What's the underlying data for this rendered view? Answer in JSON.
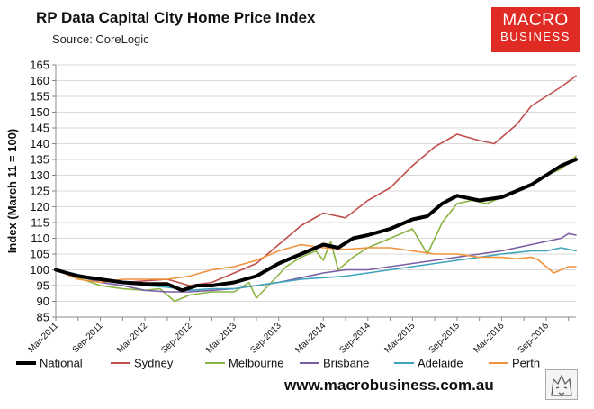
{
  "chart_data": {
    "type": "line",
    "title": "RP Data Capital City Home Price Index",
    "subtitle": "Source: CoreLogic",
    "ylabel": "Index (March 11 = 100)",
    "xlabel": "",
    "ylim": [
      85,
      165
    ],
    "yticks": [
      85,
      90,
      95,
      100,
      105,
      110,
      115,
      120,
      125,
      130,
      135,
      140,
      145,
      150,
      155,
      160,
      165
    ],
    "xlim": [
      0,
      70
    ],
    "xticks": [
      {
        "pos": 0,
        "label": "Mar-2011"
      },
      {
        "pos": 6,
        "label": "Sep-2011"
      },
      {
        "pos": 12,
        "label": "Mar-2012"
      },
      {
        "pos": 18,
        "label": "Sep-2012"
      },
      {
        "pos": 24,
        "label": "Mar-2013"
      },
      {
        "pos": 30,
        "label": "Sep-2013"
      },
      {
        "pos": 36,
        "label": "Mar-2014"
      },
      {
        "pos": 42,
        "label": "Sep-2014"
      },
      {
        "pos": 48,
        "label": "Mar-2015"
      },
      {
        "pos": 54,
        "label": "Sep-2015"
      },
      {
        "pos": 60,
        "label": "Mar-2016"
      },
      {
        "pos": 66,
        "label": "Sep-2016"
      }
    ],
    "grid": "horizontal",
    "legend_position": "bottom",
    "series": [
      {
        "name": "Sydney",
        "color": "#c0504d",
        "width": 1.6,
        "points": [
          [
            0,
            100
          ],
          [
            3,
            98.5
          ],
          [
            6,
            97
          ],
          [
            9,
            96
          ],
          [
            12,
            96.5
          ],
          [
            15,
            97
          ],
          [
            18,
            95
          ],
          [
            21,
            96
          ],
          [
            24,
            99
          ],
          [
            27,
            102
          ],
          [
            30,
            108
          ],
          [
            33,
            114
          ],
          [
            36,
            118
          ],
          [
            39,
            116.5
          ],
          [
            42,
            122
          ],
          [
            45,
            126
          ],
          [
            48,
            133
          ],
          [
            51,
            139
          ],
          [
            54,
            143
          ],
          [
            57,
            141
          ],
          [
            59,
            140
          ],
          [
            62,
            146
          ],
          [
            64,
            152
          ],
          [
            66,
            155
          ],
          [
            68,
            158
          ],
          [
            70,
            161.5
          ]
        ]
      },
      {
        "name": "Melbourne",
        "color": "#8ab440",
        "width": 1.6,
        "points": [
          [
            0,
            100
          ],
          [
            3,
            97.5
          ],
          [
            6,
            95
          ],
          [
            9,
            94
          ],
          [
            12,
            93.5
          ],
          [
            14,
            94
          ],
          [
            16,
            90
          ],
          [
            18,
            92
          ],
          [
            21,
            93
          ],
          [
            24,
            93
          ],
          [
            26,
            96
          ],
          [
            27,
            91
          ],
          [
            29,
            96
          ],
          [
            31,
            101
          ],
          [
            33,
            104
          ],
          [
            35,
            106
          ],
          [
            36,
            103
          ],
          [
            37,
            109
          ],
          [
            38,
            100
          ],
          [
            40,
            104
          ],
          [
            42,
            107
          ],
          [
            45,
            110
          ],
          [
            48,
            113
          ],
          [
            50,
            105
          ],
          [
            52,
            115
          ],
          [
            54,
            121
          ],
          [
            56,
            122
          ],
          [
            58,
            121
          ],
          [
            60,
            123
          ],
          [
            62,
            125
          ],
          [
            64,
            127
          ],
          [
            66,
            130
          ],
          [
            68,
            132
          ],
          [
            69,
            134
          ],
          [
            70,
            136
          ]
        ]
      },
      {
        "name": "Brisbane",
        "color": "#7a5ea3",
        "width": 1.6,
        "points": [
          [
            0,
            100
          ],
          [
            3,
            98
          ],
          [
            6,
            96
          ],
          [
            9,
            95
          ],
          [
            12,
            93.5
          ],
          [
            15,
            93
          ],
          [
            18,
            93
          ],
          [
            21,
            93.5
          ],
          [
            24,
            94
          ],
          [
            27,
            95
          ],
          [
            30,
            96
          ],
          [
            33,
            97.5
          ],
          [
            36,
            99
          ],
          [
            39,
            100
          ],
          [
            42,
            100
          ],
          [
            45,
            101
          ],
          [
            48,
            102
          ],
          [
            51,
            103
          ],
          [
            54,
            104
          ],
          [
            57,
            105
          ],
          [
            60,
            106
          ],
          [
            62,
            107
          ],
          [
            64,
            108
          ],
          [
            66,
            109
          ],
          [
            68,
            110
          ],
          [
            69,
            111.5
          ],
          [
            70,
            111
          ]
        ]
      },
      {
        "name": "Adelaide",
        "color": "#3fa3bd",
        "width": 1.6,
        "points": [
          [
            0,
            100
          ],
          [
            3,
            98.5
          ],
          [
            6,
            97
          ],
          [
            9,
            96
          ],
          [
            12,
            95
          ],
          [
            15,
            94.5
          ],
          [
            18,
            93.5
          ],
          [
            21,
            94
          ],
          [
            24,
            94
          ],
          [
            27,
            95
          ],
          [
            30,
            96
          ],
          [
            33,
            97
          ],
          [
            36,
            97.5
          ],
          [
            39,
            98
          ],
          [
            42,
            99
          ],
          [
            45,
            100
          ],
          [
            48,
            101
          ],
          [
            51,
            102
          ],
          [
            54,
            103
          ],
          [
            57,
            104
          ],
          [
            60,
            105
          ],
          [
            62,
            105.5
          ],
          [
            64,
            106
          ],
          [
            66,
            106
          ],
          [
            68,
            107
          ],
          [
            69,
            106.5
          ],
          [
            70,
            106
          ]
        ]
      },
      {
        "name": "Perth",
        "color": "#f0923c",
        "width": 1.6,
        "points": [
          [
            0,
            100
          ],
          [
            3,
            97
          ],
          [
            6,
            96
          ],
          [
            9,
            97
          ],
          [
            12,
            97
          ],
          [
            15,
            97
          ],
          [
            18,
            98
          ],
          [
            21,
            100
          ],
          [
            24,
            101
          ],
          [
            27,
            103
          ],
          [
            30,
            106
          ],
          [
            33,
            108
          ],
          [
            36,
            107
          ],
          [
            39,
            106.5
          ],
          [
            42,
            107
          ],
          [
            45,
            107
          ],
          [
            48,
            106
          ],
          [
            51,
            105
          ],
          [
            54,
            105
          ],
          [
            57,
            104
          ],
          [
            60,
            104
          ],
          [
            62,
            103.5
          ],
          [
            64,
            104
          ],
          [
            65,
            103
          ],
          [
            66,
            101
          ],
          [
            67,
            99
          ],
          [
            68,
            100
          ],
          [
            69,
            101
          ],
          [
            70,
            101
          ]
        ]
      },
      {
        "name": "National",
        "color": "#000000",
        "width": 4,
        "points": [
          [
            0,
            100
          ],
          [
            3,
            98
          ],
          [
            6,
            97
          ],
          [
            9,
            96
          ],
          [
            12,
            95.5
          ],
          [
            15,
            95.5
          ],
          [
            17,
            93.5
          ],
          [
            19,
            95
          ],
          [
            21,
            95
          ],
          [
            24,
            96
          ],
          [
            27,
            98
          ],
          [
            30,
            102
          ],
          [
            33,
            105
          ],
          [
            36,
            108
          ],
          [
            38,
            107
          ],
          [
            40,
            110
          ],
          [
            42,
            111
          ],
          [
            45,
            113
          ],
          [
            48,
            116
          ],
          [
            50,
            117
          ],
          [
            52,
            121
          ],
          [
            54,
            123.5
          ],
          [
            57,
            122
          ],
          [
            60,
            123
          ],
          [
            62,
            125
          ],
          [
            64,
            127
          ],
          [
            66,
            130
          ],
          [
            68,
            133
          ],
          [
            70,
            135
          ]
        ]
      }
    ]
  },
  "legend": [
    {
      "name": "National",
      "color": "#000000",
      "width": 4
    },
    {
      "name": "Sydney",
      "color": "#c0504d",
      "width": 2
    },
    {
      "name": "Melbourne",
      "color": "#8ab440",
      "width": 2
    },
    {
      "name": "Brisbane",
      "color": "#7a5ea3",
      "width": 2
    },
    {
      "name": "Adelaide",
      "color": "#3fa3bd",
      "width": 2
    },
    {
      "name": "Perth",
      "color": "#f0923c",
      "width": 2
    }
  ],
  "logo": {
    "line1": "MACRO",
    "line2": "BUSINESS"
  },
  "website": "www.macrobusiness.com.au"
}
